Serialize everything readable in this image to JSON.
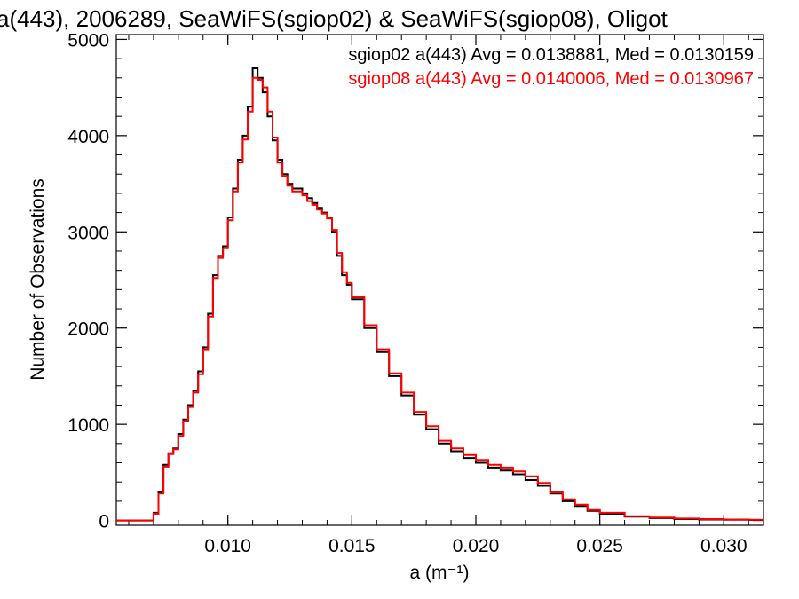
{
  "chart_data": {
    "type": "line",
    "title": "a(443), 2006289, SeaWiFS(sgiop02) & SeaWiFS(sgiop08), Oligot",
    "xlabel": "a (m⁻¹)",
    "ylabel": "Number of Observations",
    "xlim": [
      0.0055,
      0.0316
    ],
    "ylim": [
      -50,
      5050
    ],
    "x_ticks": [
      0.01,
      0.015,
      0.02,
      0.025,
      0.03
    ],
    "x_tick_labels": [
      "0.010",
      "0.015",
      "0.020",
      "0.025",
      "0.030"
    ],
    "y_ticks": [
      0,
      1000,
      2000,
      3000,
      4000,
      5000
    ],
    "y_tick_labels": [
      "0",
      "1000",
      "2000",
      "3000",
      "4000",
      "5000"
    ],
    "grid": false,
    "legend_position": "top-right",
    "series": [
      {
        "name": "sgiop02",
        "color": "#000000",
        "label": "sgiop02 a(443) Avg = 0.0138881, Med = 0.0130159",
        "x": [
          0.0055,
          0.0068,
          0.007,
          0.0072,
          0.0074,
          0.0076,
          0.0078,
          0.008,
          0.0082,
          0.0084,
          0.0086,
          0.0088,
          0.009,
          0.0092,
          0.0094,
          0.0096,
          0.0098,
          0.01,
          0.0102,
          0.0104,
          0.0106,
          0.0108,
          0.011,
          0.0112,
          0.0114,
          0.0116,
          0.0118,
          0.012,
          0.0122,
          0.0124,
          0.0126,
          0.0128,
          0.013,
          0.0132,
          0.0134,
          0.0136,
          0.0138,
          0.014,
          0.0142,
          0.0144,
          0.0146,
          0.0148,
          0.015,
          0.0155,
          0.016,
          0.0165,
          0.017,
          0.0175,
          0.018,
          0.0185,
          0.019,
          0.0195,
          0.02,
          0.0205,
          0.021,
          0.0215,
          0.022,
          0.0225,
          0.023,
          0.0235,
          0.024,
          0.0245,
          0.025,
          0.026,
          0.027,
          0.028,
          0.029,
          0.03,
          0.031,
          0.0316
        ],
        "values": [
          0,
          0,
          80,
          300,
          580,
          700,
          750,
          900,
          1050,
          1200,
          1350,
          1550,
          1800,
          2150,
          2550,
          2750,
          2850,
          3150,
          3450,
          3750,
          4000,
          4300,
          4700,
          4600,
          4450,
          4200,
          3950,
          3750,
          3600,
          3500,
          3450,
          3450,
          3400,
          3350,
          3300,
          3250,
          3200,
          3150,
          3000,
          2750,
          2550,
          2450,
          2300,
          2000,
          1750,
          1500,
          1300,
          1100,
          950,
          800,
          720,
          650,
          600,
          550,
          520,
          480,
          420,
          360,
          280,
          200,
          150,
          100,
          70,
          40,
          25,
          15,
          10,
          8,
          5,
          5
        ]
      },
      {
        "name": "sgiop08",
        "color": "#ff0000",
        "label": "sgiop08 a(443) Avg = 0.0140006, Med = 0.0130967",
        "x": [
          0.0055,
          0.0068,
          0.007,
          0.0072,
          0.0074,
          0.0076,
          0.0078,
          0.008,
          0.0082,
          0.0084,
          0.0086,
          0.0088,
          0.009,
          0.0092,
          0.0094,
          0.0096,
          0.0098,
          0.01,
          0.0102,
          0.0104,
          0.0106,
          0.0108,
          0.011,
          0.0112,
          0.0114,
          0.0116,
          0.0118,
          0.012,
          0.0122,
          0.0124,
          0.0126,
          0.0128,
          0.013,
          0.0132,
          0.0134,
          0.0136,
          0.0138,
          0.014,
          0.0142,
          0.0144,
          0.0146,
          0.0148,
          0.015,
          0.0155,
          0.016,
          0.0165,
          0.017,
          0.0175,
          0.018,
          0.0185,
          0.019,
          0.0195,
          0.02,
          0.0205,
          0.021,
          0.0215,
          0.022,
          0.0225,
          0.023,
          0.0235,
          0.024,
          0.0245,
          0.025,
          0.026,
          0.027,
          0.028,
          0.029,
          0.03,
          0.031,
          0.0316
        ],
        "values": [
          0,
          0,
          70,
          280,
          560,
          690,
          740,
          880,
          1030,
          1180,
          1330,
          1520,
          1780,
          2120,
          2520,
          2730,
          2830,
          3120,
          3420,
          3720,
          3960,
          4250,
          4600,
          4580,
          4500,
          4250,
          3980,
          3720,
          3580,
          3480,
          3420,
          3420,
          3380,
          3320,
          3280,
          3230,
          3190,
          3140,
          3020,
          2780,
          2580,
          2470,
          2320,
          2030,
          1780,
          1530,
          1330,
          1130,
          980,
          830,
          750,
          680,
          630,
          580,
          550,
          510,
          460,
          390,
          300,
          220,
          165,
          110,
          80,
          45,
          30,
          20,
          15,
          10,
          8,
          8
        ]
      }
    ]
  }
}
